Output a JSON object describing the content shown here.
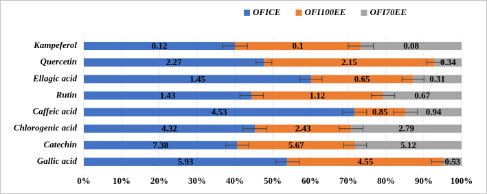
{
  "chart_data": {
    "type": "bar",
    "orientation": "horizontal",
    "stacked": "percent",
    "categories": [
      "Kampeferol",
      "Quercetin",
      "Ellagic acid",
      "Rutin",
      "Caffeic acid",
      "Chlorogenic acid",
      "Catechin",
      "Gallic acid"
    ],
    "series": [
      {
        "name": "OFICE",
        "color": "#4472c4",
        "values": [
          0.12,
          2.27,
          1.45,
          1.43,
          4.53,
          4.32,
          7.38,
          5.93
        ],
        "errors": [
          0.01,
          0.1,
          0.07,
          0.1,
          0.2,
          0.3,
          0.55,
          0.35
        ]
      },
      {
        "name": "OFI100EE",
        "color": "#ed7d31",
        "values": [
          0.1,
          2.15,
          0.65,
          1.12,
          0.85,
          2.43,
          5.67,
          4.55
        ],
        "errors": [
          0.01,
          0.1,
          0.07,
          0.1,
          0.2,
          0.3,
          0.55,
          0.35
        ]
      },
      {
        "name": "OFI70EE",
        "color": "#a5a5a5",
        "values": [
          0.08,
          0.34,
          0.31,
          0.67,
          0.94,
          2.79,
          5.12,
          0.53
        ]
      }
    ],
    "xlim": [
      0,
      100
    ],
    "xticks": [
      {
        "value": 0,
        "label": "0%"
      },
      {
        "value": 10,
        "label": "10%"
      },
      {
        "value": 20,
        "label": "20%"
      },
      {
        "value": 30,
        "label": "30%"
      },
      {
        "value": 40,
        "label": "40%"
      },
      {
        "value": 50,
        "label": "50%"
      },
      {
        "value": 60,
        "label": "60%"
      },
      {
        "value": 70,
        "label": "70%"
      },
      {
        "value": 80,
        "label": "80%"
      },
      {
        "value": 90,
        "label": "90%"
      },
      {
        "value": 100,
        "label": "100%"
      }
    ],
    "grid": true,
    "legend": "top"
  }
}
